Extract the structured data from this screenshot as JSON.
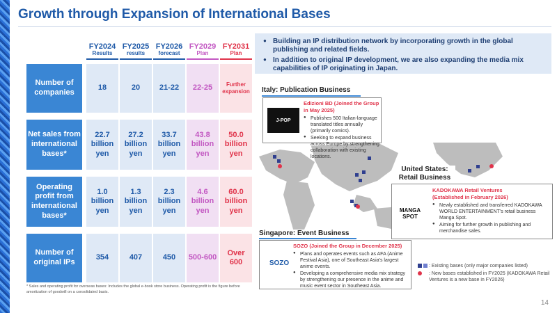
{
  "title": "Growth through Expansion of International Bases",
  "columns": [
    {
      "year": "FY2024",
      "sub": "Results"
    },
    {
      "year": "FY2025",
      "sub": "results"
    },
    {
      "year": "FY2026",
      "sub": "forecast"
    },
    {
      "year": "FY2029",
      "sub": "Plan"
    },
    {
      "year": "FY2031",
      "sub": "Plan"
    }
  ],
  "rows": [
    {
      "label": "Number of companies",
      "values": [
        "18",
        "20",
        "21-22",
        "22-25",
        "Further expansion"
      ]
    },
    {
      "label": "Net sales from international bases*",
      "values": [
        "22.7 billion yen",
        "27.2 billion yen",
        "33.7 billion yen",
        "43.8 billion yen",
        "50.0 billion yen"
      ]
    },
    {
      "label": "Operating profit from international bases*",
      "values": [
        "1.0 billion yen",
        "1.3 billion yen",
        "2.3 billion yen",
        "4.6 billion yen",
        "60.0 billion yen"
      ]
    },
    {
      "label": "Number of original IPs",
      "values": [
        "354",
        "407",
        "450",
        "500-600",
        "Over 600"
      ]
    }
  ],
  "footnote": "* Sales and operating profit for overseas bases: Includes the global e-book store business. Operating profit is the figure before amortization of goodwill on a consolidated basis.",
  "bullets": [
    "Building an IP distribution network by incorporating growth in the global publishing and related fields.",
    "In addition to original IP development, we are also expanding the media mix capabilities of IP originating in Japan."
  ],
  "italy": {
    "region": "Italy: Publication Business",
    "company": "Edizioni BD (Joined the Group in May 2025)",
    "points": [
      "Publishes 500 Italian-language translated titles annually (primarily comics).",
      "Seeking to expand business across Europe by strengthening collaboration with existing locations."
    ],
    "logo_text": "J-POP"
  },
  "us": {
    "region": "United States: Retail Business",
    "company": "KADOKAWA Retail Ventures",
    "company_sub": "(Established in February 2026)",
    "points": [
      "Newly established and transferred KADOKAWA WORLD ENTERTAINMENT's retail business Manga Spot.",
      "Aiming for further growth in publishing and merchandise sales."
    ],
    "logo_line1": "MANGA",
    "logo_line2": "SPOT"
  },
  "singapore": {
    "region": "Singapore: Event Business",
    "company": "SOZO (Joined the Group in December 2025)",
    "points": [
      "Plans and operates events such as AFA (Anime Festival Asia), one of Southeast Asia's largest anime events.",
      "Developing a comprehensive media mix strategy by strengthening our presence in the anime and music event sector in Southeast Asia."
    ],
    "logo_text": "SOZO"
  },
  "legend": {
    "existing": ": Existing bases (only major companies listed)",
    "new": ": New bases established in FY2025 (KADOKAWA Retail Ventures is a new base in FY2026)"
  },
  "colors": {
    "primary": "#1f5aa8",
    "label_bg": "#3a86d4",
    "plan_purple": "#c257c2",
    "plan_red": "#e0334a",
    "base_existing": "#2f3f8f",
    "base_new": "#e0334a"
  },
  "page_number": "14"
}
